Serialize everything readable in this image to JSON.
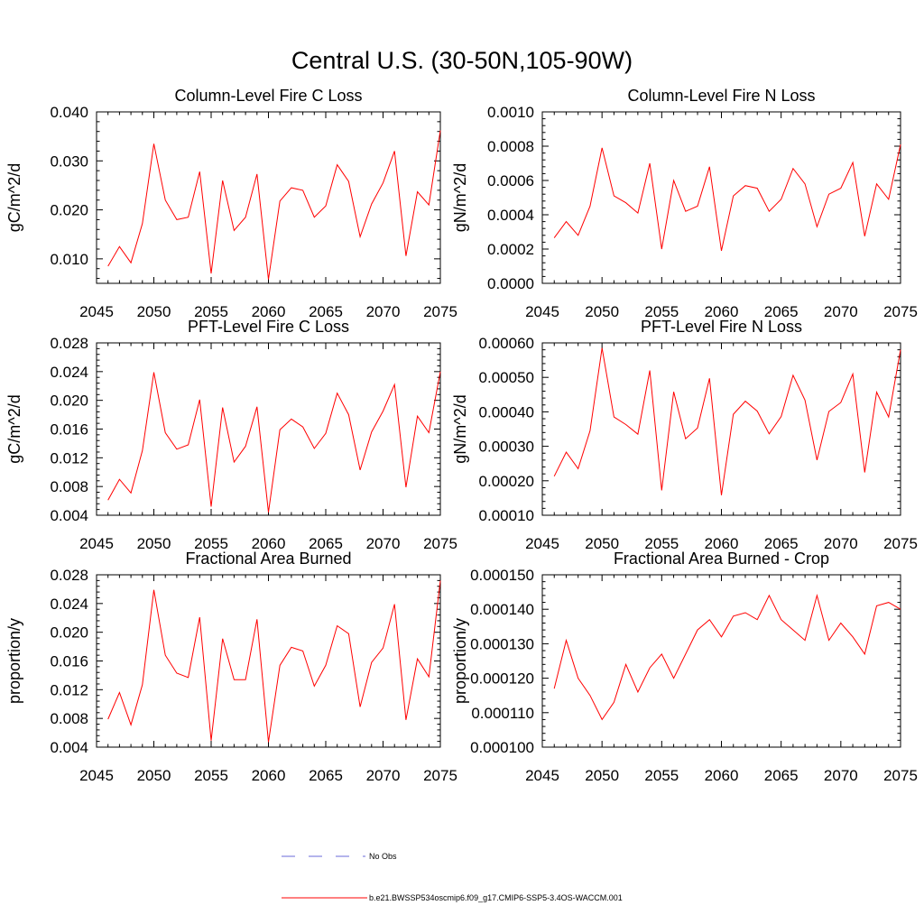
{
  "title": "Central U.S. (30-50N,105-90W)",
  "colors": {
    "series": "#ff0000",
    "obs": "#6a6ad8",
    "axis": "#000000"
  },
  "legend": {
    "obs_label": "No Obs",
    "series_label": "b.e21.BWSSP534oscmip6.f09_g17.CMIP6-SSP5-3.4OS-WACCM.001"
  },
  "chart_data": [
    {
      "type": "line",
      "title": "Column-Level Fire C Loss",
      "ylabel": "gC/m^2/d",
      "xlim": [
        2045,
        2075
      ],
      "ylim": [
        0.005,
        0.04
      ],
      "xticks": [
        "2045",
        "2050",
        "2055",
        "2060",
        "2065",
        "2070",
        "2075"
      ],
      "yticks": [
        "0.010",
        "0.020",
        "0.030",
        "0.040"
      ],
      "x": [
        2046,
        2047,
        2048,
        2049,
        2050,
        2051,
        2052,
        2053,
        2054,
        2055,
        2056,
        2057,
        2058,
        2059,
        2060,
        2061,
        2062,
        2063,
        2064,
        2065,
        2066,
        2067,
        2068,
        2069,
        2070,
        2071,
        2072,
        2073,
        2074,
        2075
      ],
      "values": [
        0.0085,
        0.0125,
        0.0092,
        0.0172,
        0.0335,
        0.022,
        0.018,
        0.0185,
        0.0278,
        0.007,
        0.026,
        0.0158,
        0.0185,
        0.0273,
        0.0058,
        0.0218,
        0.0245,
        0.024,
        0.0185,
        0.0208,
        0.0292,
        0.0258,
        0.0145,
        0.0212,
        0.0255,
        0.032,
        0.0106,
        0.0237,
        0.021,
        0.0362
      ]
    },
    {
      "type": "line",
      "title": "Column-Level Fire N Loss",
      "ylabel": "gN/m^2/d",
      "xlim": [
        2045,
        2075
      ],
      "ylim": [
        0,
        0.001
      ],
      "xticks": [
        "2045",
        "2050",
        "2055",
        "2060",
        "2065",
        "2070",
        "2075"
      ],
      "yticks": [
        "0.0000",
        "0.0002",
        "0.0004",
        "0.0006",
        "0.0008",
        "0.0010"
      ],
      "x": [
        2046,
        2047,
        2048,
        2049,
        2050,
        2051,
        2052,
        2053,
        2054,
        2055,
        2056,
        2057,
        2058,
        2059,
        2060,
        2061,
        2062,
        2063,
        2064,
        2065,
        2066,
        2067,
        2068,
        2069,
        2070,
        2071,
        2072,
        2073,
        2074,
        2075
      ],
      "values": [
        0.000265,
        0.00036,
        0.00028,
        0.00045,
        0.00079,
        0.00051,
        0.00047,
        0.00041,
        0.0007,
        0.0002,
        0.0006,
        0.00042,
        0.00045,
        0.00068,
        0.00019,
        0.00051,
        0.00057,
        0.000555,
        0.00042,
        0.00049,
        0.00067,
        0.00058,
        0.00033,
        0.00052,
        0.000555,
        0.000705,
        0.000275,
        0.00058,
        0.00049,
        0.00081
      ]
    },
    {
      "type": "line",
      "title": "PFT-Level Fire C Loss",
      "ylabel": "gC/m^2/d",
      "xlim": [
        2045,
        2075
      ],
      "ylim": [
        0.004,
        0.028
      ],
      "xticks": [
        "2045",
        "2050",
        "2055",
        "2060",
        "2065",
        "2070",
        "2075"
      ],
      "yticks": [
        "0.004",
        "0.008",
        "0.012",
        "0.016",
        "0.020",
        "0.024",
        "0.028"
      ],
      "x": [
        2046,
        2047,
        2048,
        2049,
        2050,
        2051,
        2052,
        2053,
        2054,
        2055,
        2056,
        2057,
        2058,
        2059,
        2060,
        2061,
        2062,
        2063,
        2064,
        2065,
        2066,
        2067,
        2068,
        2069,
        2070,
        2071,
        2072,
        2073,
        2074,
        2075
      ],
      "values": [
        0.0061,
        0.009,
        0.0071,
        0.013,
        0.0239,
        0.0155,
        0.0132,
        0.0138,
        0.0201,
        0.0052,
        0.019,
        0.0114,
        0.0136,
        0.0191,
        0.0044,
        0.0159,
        0.0174,
        0.0163,
        0.0133,
        0.0154,
        0.021,
        0.018,
        0.0103,
        0.0156,
        0.0185,
        0.0222,
        0.0079,
        0.0178,
        0.0155,
        0.024
      ]
    },
    {
      "type": "line",
      "title": "PFT-Level Fire N Loss",
      "ylabel": "gN/m^2/d",
      "xlim": [
        2045,
        2075
      ],
      "ylim": [
        0.0001,
        0.0006
      ],
      "xticks": [
        "2045",
        "2050",
        "2055",
        "2060",
        "2065",
        "2070",
        "2075"
      ],
      "yticks": [
        "0.00010",
        "0.00020",
        "0.00030",
        "0.00040",
        "0.00050",
        "0.00060"
      ],
      "x": [
        2046,
        2047,
        2048,
        2049,
        2050,
        2051,
        2052,
        2053,
        2054,
        2055,
        2056,
        2057,
        2058,
        2059,
        2060,
        2061,
        2062,
        2063,
        2064,
        2065,
        2066,
        2067,
        2068,
        2069,
        2070,
        2071,
        2072,
        2073,
        2074,
        2075
      ],
      "values": [
        0.000213,
        0.000283,
        0.000235,
        0.000345,
        0.000585,
        0.000385,
        0.000363,
        0.000335,
        0.00052,
        0.000172,
        0.000458,
        0.000322,
        0.000353,
        0.000497,
        0.000158,
        0.000393,
        0.000431,
        0.000402,
        0.000336,
        0.000386,
        0.000506,
        0.000434,
        0.00026,
        0.000401,
        0.000427,
        0.00051,
        0.000224,
        0.000457,
        0.000385,
        0.00058
      ]
    },
    {
      "type": "line",
      "title": "Fractional Area Burned",
      "ylabel": "proportion/y",
      "xlim": [
        2045,
        2075
      ],
      "ylim": [
        0.004,
        0.028
      ],
      "xticks": [
        "2045",
        "2050",
        "2055",
        "2060",
        "2065",
        "2070",
        "2075"
      ],
      "yticks": [
        "0.004",
        "0.008",
        "0.012",
        "0.016",
        "0.020",
        "0.024",
        "0.028"
      ],
      "x": [
        2046,
        2047,
        2048,
        2049,
        2050,
        2051,
        2052,
        2053,
        2054,
        2055,
        2056,
        2057,
        2058,
        2059,
        2060,
        2061,
        2062,
        2063,
        2064,
        2065,
        2066,
        2067,
        2068,
        2069,
        2070,
        2071,
        2072,
        2073,
        2074,
        2075
      ],
      "values": [
        0.0079,
        0.0116,
        0.0071,
        0.0127,
        0.0259,
        0.0168,
        0.0143,
        0.0137,
        0.0221,
        0.0049,
        0.0191,
        0.0134,
        0.0134,
        0.0218,
        0.0047,
        0.0154,
        0.0179,
        0.0174,
        0.0125,
        0.0154,
        0.0209,
        0.0198,
        0.0096,
        0.0158,
        0.0178,
        0.0239,
        0.0078,
        0.0163,
        0.0138,
        0.0272
      ]
    },
    {
      "type": "line",
      "title": "Fractional Area Burned - Crop",
      "ylabel": "proportion/y",
      "xlim": [
        2045,
        2075
      ],
      "ylim": [
        0.0001,
        0.00015
      ],
      "xticks": [
        "2045",
        "2050",
        "2055",
        "2060",
        "2065",
        "2070",
        "2075"
      ],
      "yticks": [
        "0.000100",
        "0.000110",
        "0.000120",
        "0.000130",
        "0.000140",
        "0.000150"
      ],
      "x": [
        2046,
        2047,
        2048,
        2049,
        2050,
        2051,
        2052,
        2053,
        2054,
        2055,
        2056,
        2057,
        2058,
        2059,
        2060,
        2061,
        2062,
        2063,
        2064,
        2065,
        2066,
        2067,
        2068,
        2069,
        2070,
        2071,
        2072,
        2073,
        2074,
        2075
      ],
      "values": [
        0.000117,
        0.000131,
        0.00012,
        0.000115,
        0.000108,
        0.000113,
        0.000124,
        0.000116,
        0.000123,
        0.000127,
        0.00012,
        0.000127,
        0.000134,
        0.000137,
        0.000132,
        0.000138,
        0.000139,
        0.000137,
        0.000144,
        0.000137,
        0.000134,
        0.000131,
        0.000144,
        0.000131,
        0.000136,
        0.000132,
        0.000127,
        0.000141,
        0.000142,
        0.00014
      ]
    }
  ]
}
